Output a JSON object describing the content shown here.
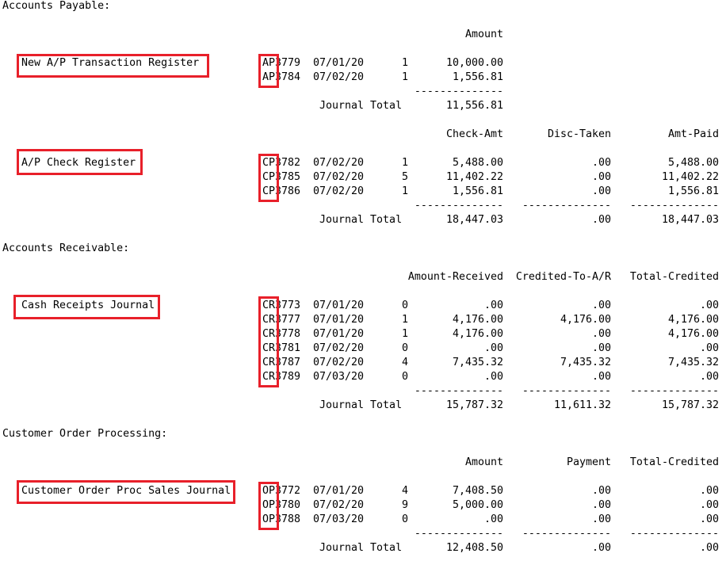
{
  "highlight_color": "#e8202a",
  "sections": [
    {
      "title": "Accounts Payable:",
      "journals": [
        {
          "name": "New A/P Transaction Register",
          "headers": [
            "Amount"
          ],
          "rows": [
            [
              "AP3779",
              "07/01/20",
              "1",
              "10,000.00"
            ],
            [
              "AP3784",
              "07/02/20",
              "1",
              "1,556.81"
            ]
          ],
          "total_label": "Journal Total",
          "totals": [
            "11,556.81"
          ]
        },
        {
          "name": "A/P Check Register",
          "headers": [
            "Check-Amt",
            "Disc-Taken",
            "Amt-Paid"
          ],
          "rows": [
            [
              "CP3782",
              "07/02/20",
              "1",
              "5,488.00",
              ".00",
              "5,488.00"
            ],
            [
              "CP3785",
              "07/02/20",
              "5",
              "11,402.22",
              ".00",
              "11,402.22"
            ],
            [
              "CP3786",
              "07/02/20",
              "1",
              "1,556.81",
              ".00",
              "1,556.81"
            ]
          ],
          "total_label": "Journal Total",
          "totals": [
            "18,447.03",
            ".00",
            "18,447.03"
          ]
        }
      ]
    },
    {
      "title": "Accounts Receivable:",
      "journals": [
        {
          "name": "Cash Receipts Journal",
          "headers": [
            "Amount-Received",
            "Credited-To-A/R",
            "Total-Credited"
          ],
          "rows": [
            [
              "CR3773",
              "07/01/20",
              "0",
              ".00",
              ".00",
              ".00"
            ],
            [
              "CR3777",
              "07/01/20",
              "1",
              "4,176.00",
              "4,176.00",
              "4,176.00"
            ],
            [
              "CR3778",
              "07/01/20",
              "1",
              "4,176.00",
              ".00",
              "4,176.00"
            ],
            [
              "CR3781",
              "07/02/20",
              "0",
              ".00",
              ".00",
              ".00"
            ],
            [
              "CR3787",
              "07/02/20",
              "4",
              "7,435.32",
              "7,435.32",
              "7,435.32"
            ],
            [
              "CR3789",
              "07/03/20",
              "0",
              ".00",
              ".00",
              ".00"
            ]
          ],
          "total_label": "Journal Total",
          "totals": [
            "15,787.32",
            "11,611.32",
            "15,787.32"
          ]
        }
      ]
    },
    {
      "title": "Customer Order Processing:",
      "journals": [
        {
          "name": "Customer Order Proc Sales Journal",
          "headers": [
            "Amount",
            "Payment",
            "Total-Credited"
          ],
          "rows": [
            [
              "OP3772",
              "07/01/20",
              "4",
              "7,408.50",
              ".00",
              ".00"
            ],
            [
              "OP3780",
              "07/02/20",
              "9",
              "5,000.00",
              ".00",
              ".00"
            ],
            [
              "OP3788",
              "07/03/20",
              "0",
              ".00",
              ".00",
              ".00"
            ]
          ],
          "total_label": "Journal Total",
          "totals": [
            "12,408.50",
            ".00",
            ".00"
          ]
        }
      ]
    }
  ]
}
